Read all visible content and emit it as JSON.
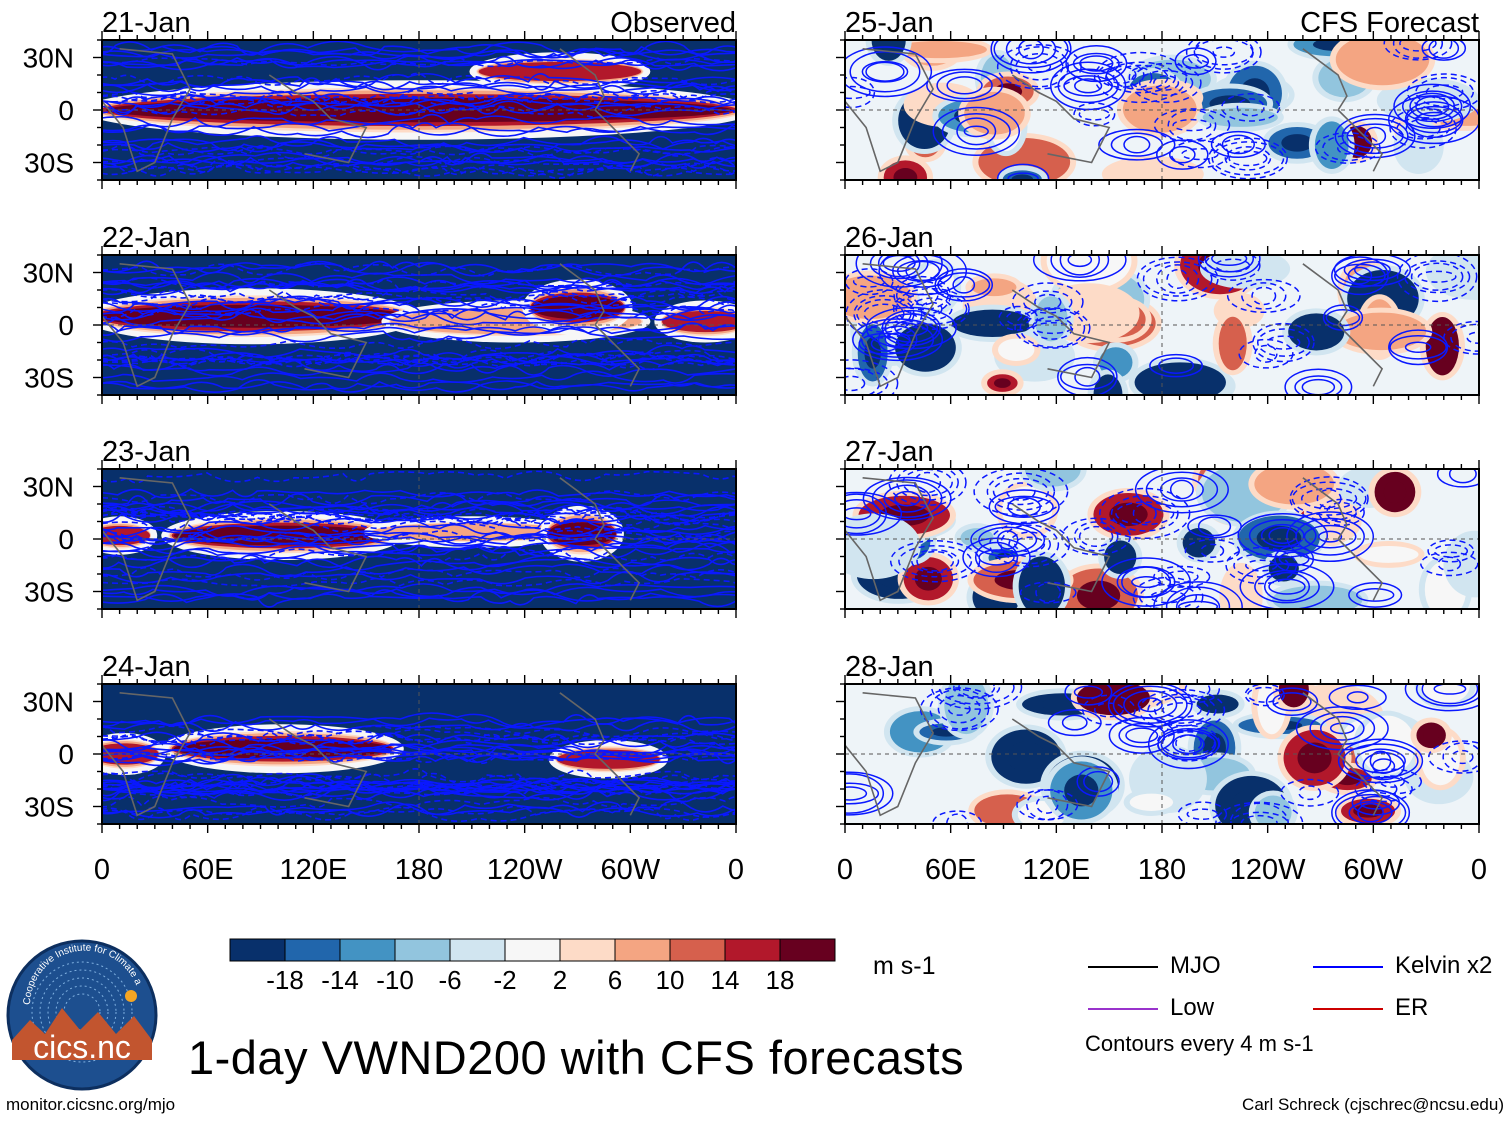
{
  "figure": {
    "title": "1-day VWND200 with CFS forecasts",
    "footer_left": "monitor.cicsnc.org/mjo",
    "footer_right": "Carl Schreck (cjschrec@ncsu.edu)",
    "units": "m s-1",
    "contour_note": "Contours every 4 m s-1",
    "logo": {
      "text": "cics.nc",
      "ring_text": "Cooperative Institute for Climate and Satellites"
    }
  },
  "colorbar": {
    "tick_labels": [
      "-18",
      "-14",
      "-10",
      "-6",
      "-2",
      "2",
      "6",
      "10",
      "14",
      "18"
    ],
    "colors": [
      "#08306b",
      "#2166ac",
      "#4393c3",
      "#92c5de",
      "#d1e5f0",
      "#f7f7f7",
      "#fddbc7",
      "#f4a582",
      "#d6604d",
      "#b2182b",
      "#67001f"
    ]
  },
  "legend": [
    {
      "label": "MJO",
      "color": "#000000"
    },
    {
      "label": "Kelvin x2",
      "color": "#0000ff"
    },
    {
      "label": "Low",
      "color": "#9933cc"
    },
    {
      "label": "ER",
      "color": "#cc0000"
    }
  ],
  "chart_data": {
    "type": "heatmap",
    "variable": "VWND200",
    "x_tick_labels": [
      "0",
      "60E",
      "120E",
      "180",
      "120W",
      "60W",
      "0"
    ],
    "x_ticks_deg": [
      0,
      60,
      120,
      180,
      240,
      300,
      360
    ],
    "y_tick_labels": [
      "30N",
      "0",
      "30S"
    ],
    "y_ticks_deg": [
      30,
      0,
      -30
    ],
    "xlim": [
      0,
      360
    ],
    "ylim": [
      -40,
      40
    ],
    "panels": [
      {
        "date": "21-Jan",
        "label": "Observed",
        "column": "left",
        "row": 0,
        "kind": "observed",
        "features": [
          {
            "lon0": 0,
            "lon1": 360,
            "lat": 0,
            "half_width": 13,
            "value": 20
          },
          {
            "lon0": 220,
            "lon1": 300,
            "lat": 22,
            "half_width": 7,
            "value": 14
          }
        ]
      },
      {
        "date": "22-Jan",
        "label": "",
        "column": "left",
        "row": 1,
        "kind": "observed",
        "features": [
          {
            "lon0": 0,
            "lon1": 170,
            "lat": 5,
            "half_width": 12,
            "value": 20
          },
          {
            "lon0": 170,
            "lon1": 300,
            "lat": 2,
            "half_width": 8,
            "value": 12
          },
          {
            "lon0": 250,
            "lon1": 290,
            "lat": 10,
            "half_width": 12,
            "value": 20
          },
          {
            "lon0": 325,
            "lon1": 360,
            "lat": 2,
            "half_width": 8,
            "value": 16
          }
        ]
      },
      {
        "date": "23-Jan",
        "label": "",
        "column": "left",
        "row": 2,
        "kind": "observed",
        "features": [
          {
            "lon0": 0,
            "lon1": 20,
            "lat": 2,
            "half_width": 7,
            "value": 14
          },
          {
            "lon0": 45,
            "lon1": 160,
            "lat": 2,
            "half_width": 10,
            "value": 20
          },
          {
            "lon0": 160,
            "lon1": 260,
            "lat": 4,
            "half_width": 5,
            "value": 8
          },
          {
            "lon0": 260,
            "lon1": 285,
            "lat": 3,
            "half_width": 12,
            "value": 20
          }
        ]
      },
      {
        "date": "24-Jan",
        "label": "",
        "column": "left",
        "row": 3,
        "kind": "observed",
        "features": [
          {
            "lon0": 0,
            "lon1": 25,
            "lat": 0,
            "half_width": 8,
            "value": 18
          },
          {
            "lon0": 45,
            "lon1": 160,
            "lat": 3,
            "half_width": 10,
            "value": 20
          },
          {
            "lon0": 265,
            "lon1": 310,
            "lat": -3,
            "half_width": 7,
            "value": 14
          }
        ]
      },
      {
        "date": "25-Jan",
        "label": "CFS Forecast",
        "column": "right",
        "row": 0,
        "kind": "forecast",
        "seed": 11
      },
      {
        "date": "26-Jan",
        "label": "",
        "column": "right",
        "row": 1,
        "kind": "forecast",
        "seed": 23
      },
      {
        "date": "27-Jan",
        "label": "",
        "column": "right",
        "row": 2,
        "kind": "forecast",
        "seed": 37
      },
      {
        "date": "28-Jan",
        "label": "",
        "column": "right",
        "row": 3,
        "kind": "forecast",
        "seed": 51
      }
    ]
  }
}
